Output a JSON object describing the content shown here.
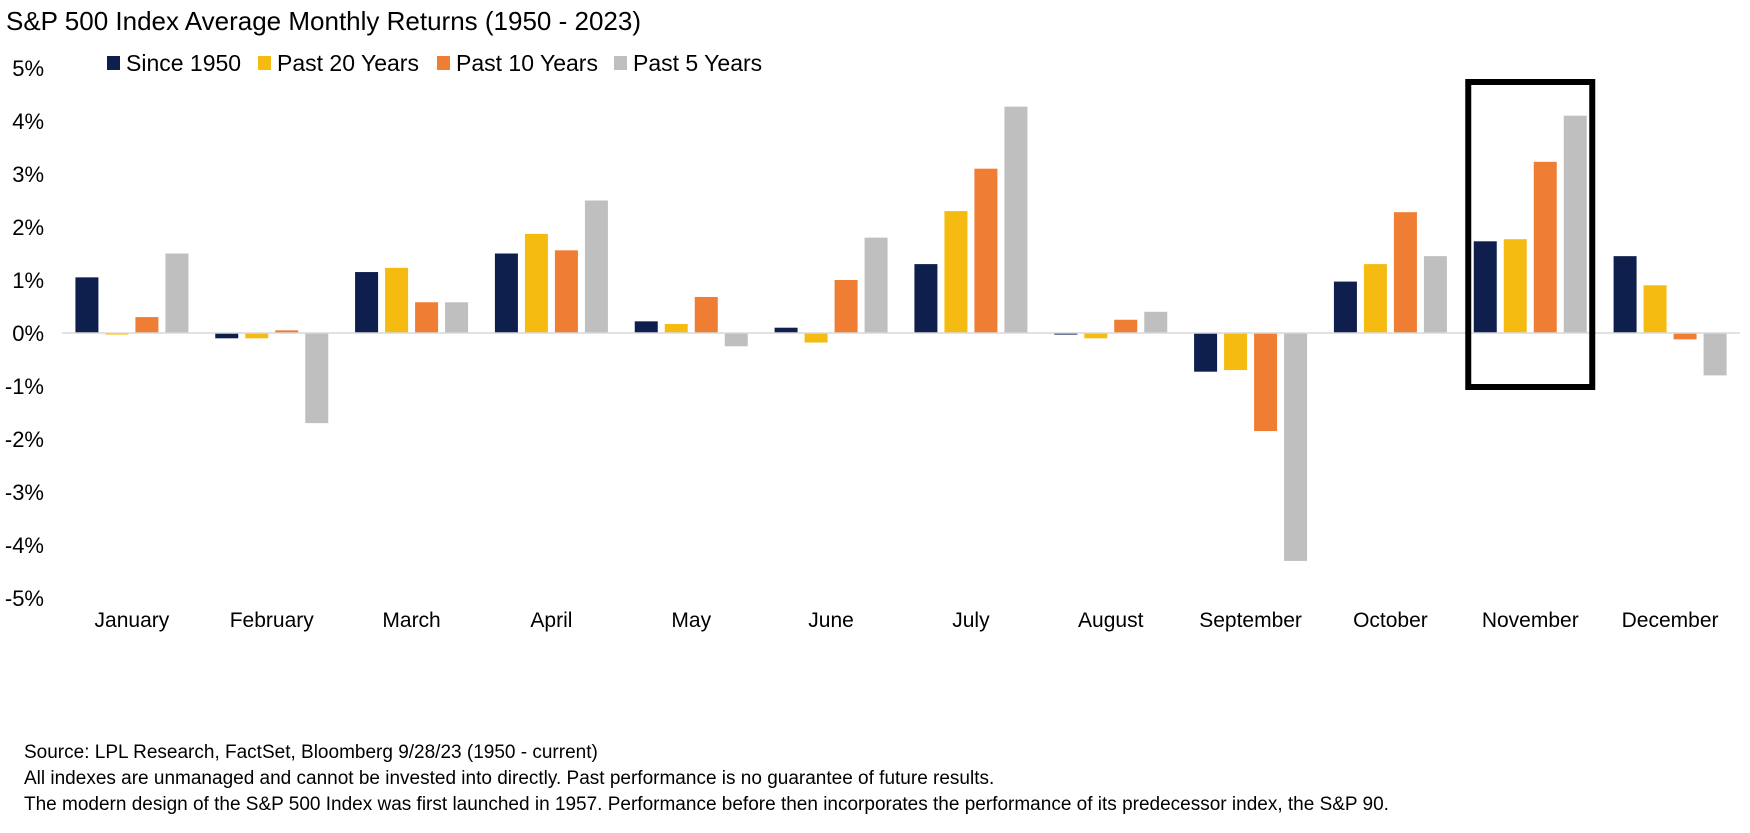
{
  "chart_data": {
    "type": "bar",
    "title": "S&P 500 Index Average Monthly Returns (1950 - 2023)",
    "xlabel": "",
    "ylabel": "",
    "ylim": [
      -5,
      5
    ],
    "yticks": [
      5,
      4,
      3,
      2,
      1,
      0,
      -1,
      -2,
      -3,
      -4,
      -5
    ],
    "ytick_labels": [
      "5%",
      "4%",
      "3%",
      "2%",
      "1%",
      "0%",
      "-1%",
      "-2%",
      "-3%",
      "-4%",
      "-5%"
    ],
    "grid": false,
    "legend_position": "top-left",
    "categories": [
      "January",
      "February",
      "March",
      "April",
      "May",
      "June",
      "July",
      "August",
      "September",
      "October",
      "November",
      "December"
    ],
    "series": [
      {
        "name": "Since 1950",
        "color": "#0f1f4d",
        "values": [
          1.05,
          -0.1,
          1.15,
          1.5,
          0.22,
          0.1,
          1.3,
          -0.03,
          -0.73,
          0.97,
          1.73,
          1.45
        ]
      },
      {
        "name": "Past 20 Years",
        "color": "#f5bb11",
        "values": [
          -0.03,
          -0.1,
          1.23,
          1.87,
          0.17,
          -0.18,
          2.3,
          -0.1,
          -0.7,
          1.3,
          1.77,
          0.9
        ]
      },
      {
        "name": "Past 10 Years",
        "color": "#ef7d34",
        "values": [
          0.3,
          0.05,
          0.58,
          1.56,
          0.68,
          1.0,
          3.1,
          0.25,
          -1.85,
          2.28,
          3.23,
          -0.12
        ]
      },
      {
        "name": "Past 5 Years",
        "color": "#bfbfbf",
        "values": [
          1.5,
          -1.7,
          0.58,
          2.5,
          -0.25,
          1.8,
          4.27,
          0.4,
          -4.3,
          1.45,
          4.1,
          -0.8
        ]
      }
    ],
    "highlight_category": "November",
    "axis_color": "#d9d9d9"
  },
  "footnotes": {
    "source": "Source: LPL Research, FactSet, Bloomberg 9/28/23  (1950 - current)",
    "disclaimer": "All indexes are unmanaged and cannot be invested into directly. Past performance is no guarantee of future results.",
    "history": "The modern design of the S&P 500 Index was first launched in 1957. Performance before then incorporates the performance of its  predecessor index, the S&P 90."
  }
}
